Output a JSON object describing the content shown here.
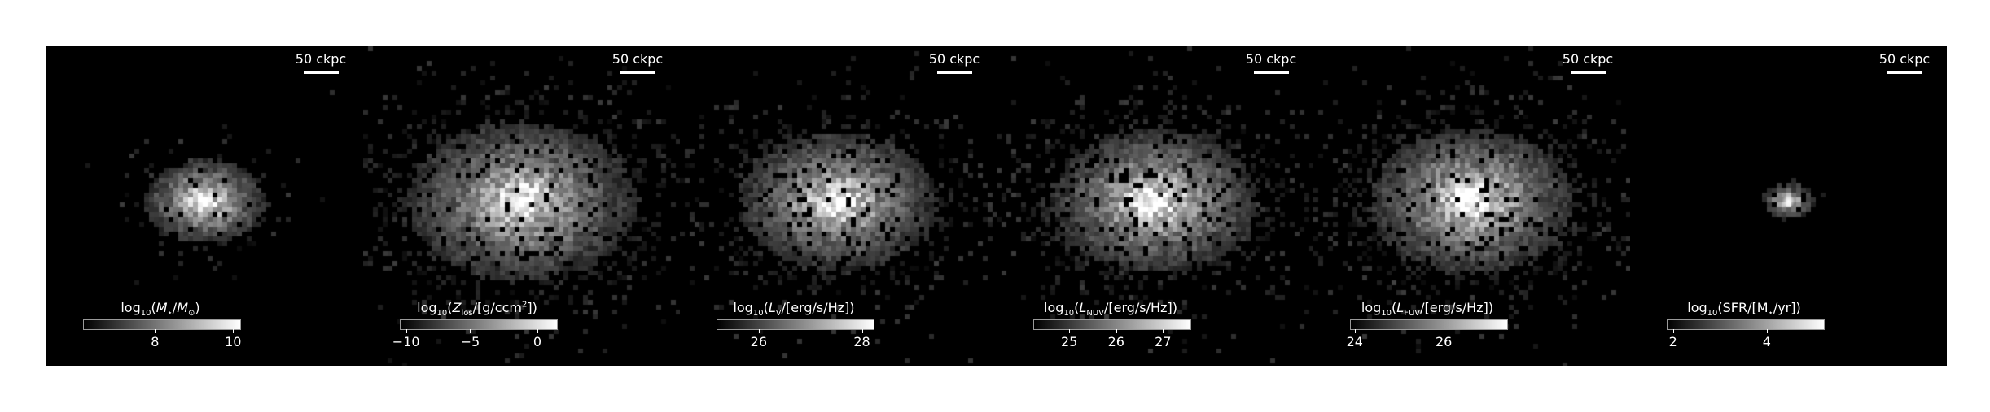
{
  "panels": [
    {
      "scalebar_label": "50 ckpc",
      "colorbar_label": "log10(M⋆/M⊙)",
      "colorbar_ticks": [
        {
          "label": "8",
          "frac": 0.46
        },
        {
          "label": "10",
          "frac": 0.96
        }
      ],
      "spread": 0.16,
      "peak_brightness": 1.0,
      "noise_level": 0.12
    },
    {
      "scalebar_label": "50 ckpc",
      "colorbar_label": "log10(Zlos/[g/ccm2])",
      "colorbar_ticks": [
        {
          "label": "−10",
          "frac": 0.04
        },
        {
          "label": "−5",
          "frac": 0.45
        },
        {
          "label": "0",
          "frac": 0.88
        }
      ],
      "spread": 0.3,
      "peak_brightness": 0.95,
      "noise_level": 0.35
    },
    {
      "scalebar_label": "50 ckpc",
      "colorbar_label": "log10(LV/[erg/s/Hz])",
      "colorbar_ticks": [
        {
          "label": "26",
          "frac": 0.27
        },
        {
          "label": "28",
          "frac": 0.93
        }
      ],
      "spread": 0.26,
      "peak_brightness": 0.95,
      "noise_level": 0.3
    },
    {
      "scalebar_label": "50 ckpc",
      "colorbar_label": "log10(LNUV/[erg/s/Hz])",
      "colorbar_ticks": [
        {
          "label": "25",
          "frac": 0.23
        },
        {
          "label": "26",
          "frac": 0.53
        },
        {
          "label": "27",
          "frac": 0.83
        }
      ],
      "spread": 0.27,
      "peak_brightness": 0.98,
      "noise_level": 0.4
    },
    {
      "scalebar_label": "50 ckpc",
      "colorbar_label": "log10(LFUV/[erg/s/Hz])",
      "colorbar_ticks": [
        {
          "label": "24",
          "frac": 0.03
        },
        {
          "label": "26",
          "frac": 0.6
        }
      ],
      "spread": 0.27,
      "peak_brightness": 0.98,
      "noise_level": 0.42
    },
    {
      "scalebar_label": "50 ckpc",
      "colorbar_label": "log10(SFR/[M⋆/yr])",
      "colorbar_ticks": [
        {
          "label": "2",
          "frac": 0.04
        },
        {
          "label": "4",
          "frac": 0.64
        }
      ],
      "spread": 0.07,
      "peak_brightness": 0.95,
      "noise_level": 0.05
    }
  ],
  "colors": {
    "background": "#000000",
    "page": "#ffffff",
    "text": "#ffffff"
  }
}
